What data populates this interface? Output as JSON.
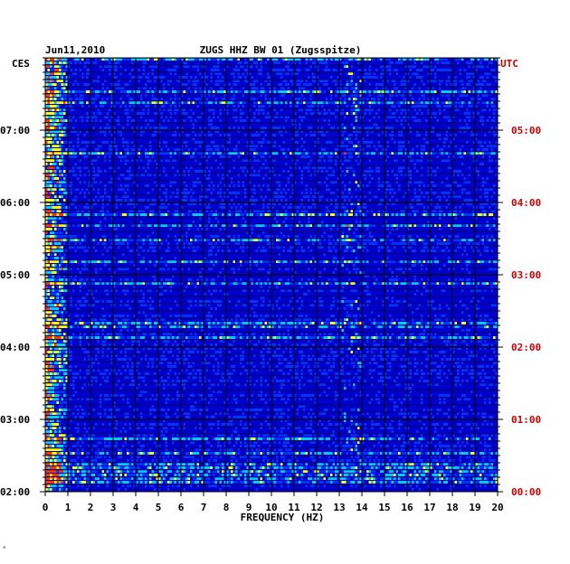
{
  "chart_data": {
    "type": "heatmap",
    "date": "Jun11,2010",
    "title": "ZUGS HHZ BW 01 (Zugsspitze)",
    "left_timezone": "CES",
    "right_timezone": "UTC",
    "xlabel": "FREQUENCY (HZ)",
    "xlim": [
      0,
      20
    ],
    "x_ticks": [
      "0",
      "1",
      "2",
      "3",
      "4",
      "5",
      "6",
      "7",
      "8",
      "9",
      "10",
      "11",
      "12",
      "13",
      "14",
      "15",
      "16",
      "17",
      "18",
      "19",
      "20"
    ],
    "left_time_ticks": [
      "07:00",
      "06:00",
      "05:00",
      "04:00",
      "03:00",
      "02:00"
    ],
    "right_time_ticks": [
      "05:00",
      "04:00",
      "03:00",
      "02:00",
      "01:00",
      "00:00"
    ],
    "time_range_utc": [
      "00:00",
      "06:00"
    ],
    "colors": {
      "background": "#0000cc",
      "low": "#0033ff",
      "mid": "#00ccff",
      "high": "#ffff00",
      "peak": "#ff3300",
      "grid": "#000000",
      "utc_label": "#cc0000"
    },
    "features": {
      "dominant_band_hz": [
        0,
        1
      ],
      "notes_band_hz": [
        13,
        14
      ]
    }
  },
  "corner_mark": "ᴹ"
}
